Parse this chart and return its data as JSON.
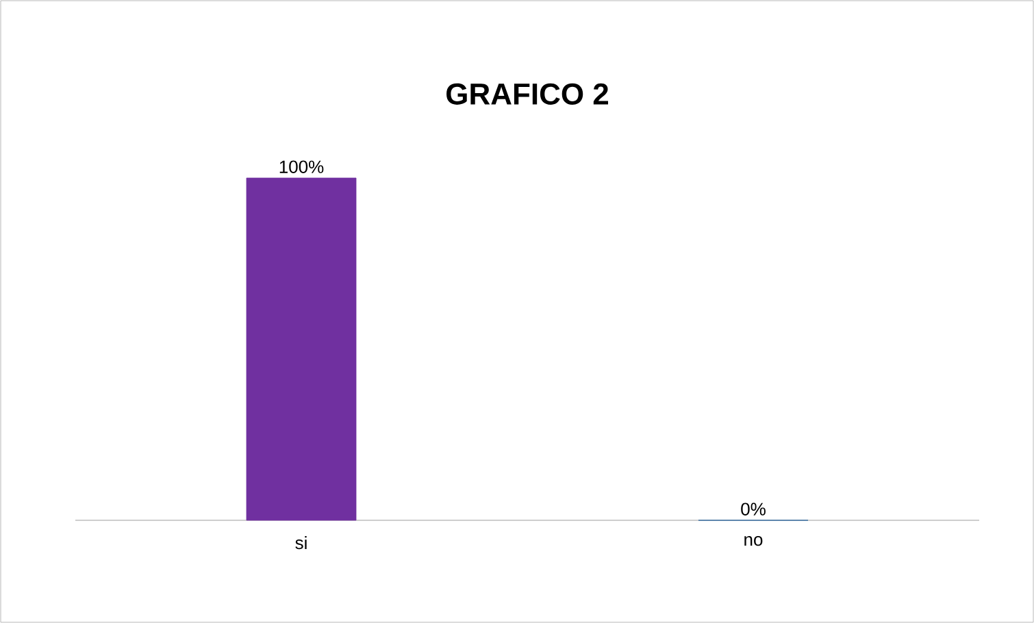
{
  "chart_data": {
    "type": "bar",
    "title": "GRAFICO 2",
    "categories": [
      "si",
      "no"
    ],
    "values": [
      100,
      0
    ],
    "colors": [
      "#7030a0",
      "#1f5f9a"
    ],
    "value_labels": [
      "100%",
      "0%"
    ]
  }
}
